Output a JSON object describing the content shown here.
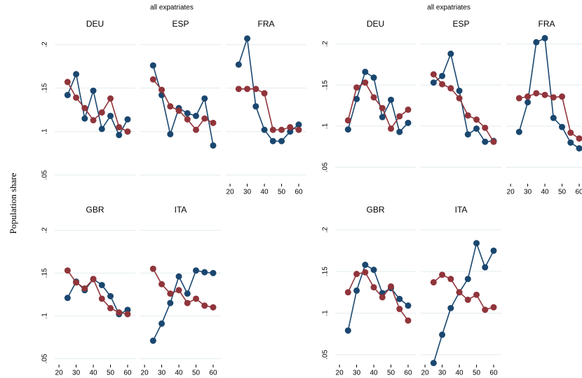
{
  "ylabel": "Population share",
  "groups": [
    {
      "title": "all expatriates"
    },
    {
      "title": "all expatriates"
    }
  ],
  "chart_data": [
    {
      "type": "line",
      "title": "DEU",
      "x": [
        25,
        30,
        35,
        40,
        45,
        50,
        55,
        60
      ],
      "xlim": [
        17.5,
        64.5
      ],
      "ylim": [
        0.04,
        0.215
      ],
      "yticks": [
        {
          "value": 0.05,
          "label": ".05"
        },
        {
          "value": 0.1,
          "label": ".1"
        },
        {
          "value": 0.15,
          "label": ".15"
        },
        {
          "value": 0.2,
          "label": ".2"
        }
      ],
      "series": [
        {
          "color": "#1a476f",
          "values": [
            0.142,
            0.166,
            0.115,
            0.147,
            0.103,
            0.118,
            0.096,
            0.114
          ]
        },
        {
          "color": "#90353b",
          "values": [
            0.157,
            0.139,
            0.127,
            0.113,
            0.122,
            0.138,
            0.105,
            0.1
          ]
        }
      ]
    },
    {
      "type": "line",
      "title": "ESP",
      "x": [
        25,
        30,
        35,
        40,
        45,
        50,
        55,
        60
      ],
      "xlim": [
        17.5,
        64.5
      ],
      "ylim": [
        0.04,
        0.215
      ],
      "yticks": [
        {
          "value": 0.05,
          "label": ".05"
        },
        {
          "value": 0.1,
          "label": ".1"
        },
        {
          "value": 0.15,
          "label": ".15"
        },
        {
          "value": 0.2,
          "label": ".2"
        }
      ],
      "series": [
        {
          "color": "#1a476f",
          "values": [
            0.176,
            0.142,
            0.097,
            0.127,
            0.121,
            0.118,
            0.138,
            0.084
          ]
        },
        {
          "color": "#90353b",
          "values": [
            0.16,
            0.148,
            0.129,
            0.124,
            0.114,
            0.102,
            0.115,
            0.11
          ]
        }
      ]
    },
    {
      "type": "line",
      "title": "FRA",
      "x": [
        25,
        30,
        35,
        40,
        45,
        50,
        55,
        60
      ],
      "xlim": [
        17.5,
        64.5
      ],
      "ylim": [
        0.04,
        0.215
      ],
      "yticks": [
        {
          "value": 0.05,
          "label": ".05"
        },
        {
          "value": 0.1,
          "label": ".1"
        },
        {
          "value": 0.15,
          "label": ".15"
        },
        {
          "value": 0.2,
          "label": ".2"
        }
      ],
      "xticks": [
        20,
        30,
        40,
        50,
        60
      ],
      "series": [
        {
          "color": "#1a476f",
          "values": [
            0.177,
            0.207,
            0.129,
            0.102,
            0.089,
            0.089,
            0.1,
            0.108
          ]
        },
        {
          "color": "#90353b",
          "values": [
            0.149,
            0.149,
            0.149,
            0.144,
            0.102,
            0.102,
            0.105,
            0.102
          ]
        }
      ]
    },
    {
      "type": "line",
      "title": "GBR",
      "x": [
        25,
        30,
        35,
        40,
        45,
        50,
        55,
        60
      ],
      "xlim": [
        17.5,
        64.5
      ],
      "ylim": [
        0.043,
        0.215
      ],
      "yticks": [
        {
          "value": 0.05,
          "label": ".05"
        },
        {
          "value": 0.1,
          "label": ".1"
        },
        {
          "value": 0.15,
          "label": ".15"
        },
        {
          "value": 0.2,
          "label": ".2"
        }
      ],
      "xticks": [
        20,
        30,
        40,
        50,
        60
      ],
      "series": [
        {
          "color": "#1a476f",
          "values": [
            0.121,
            0.14,
            0.13,
            0.143,
            0.136,
            0.123,
            0.102,
            0.107
          ]
        },
        {
          "color": "#90353b",
          "values": [
            0.153,
            0.139,
            0.132,
            0.143,
            0.12,
            0.109,
            0.104,
            0.102
          ]
        }
      ]
    },
    {
      "type": "line",
      "title": "ITA",
      "x": [
        25,
        30,
        35,
        40,
        45,
        50,
        55,
        60
      ],
      "xlim": [
        17.5,
        64.5
      ],
      "ylim": [
        0.043,
        0.215
      ],
      "yticks": [
        {
          "value": 0.05,
          "label": ".05"
        },
        {
          "value": 0.1,
          "label": ".1"
        },
        {
          "value": 0.15,
          "label": ".15"
        },
        {
          "value": 0.2,
          "label": ".2"
        }
      ],
      "xticks": [
        20,
        30,
        40,
        50,
        60
      ],
      "series": [
        {
          "color": "#1a476f",
          "values": [
            0.071,
            0.091,
            0.115,
            0.146,
            0.126,
            0.153,
            0.151,
            0.15
          ]
        },
        {
          "color": "#90353b",
          "values": [
            0.155,
            0.137,
            0.126,
            0.13,
            0.115,
            0.12,
            0.112,
            0.11
          ]
        }
      ]
    },
    {
      "type": "line",
      "title": "DEU",
      "x": [
        25,
        30,
        35,
        40,
        45,
        50,
        55,
        60
      ],
      "xlim": [
        17.5,
        64.5
      ],
      "ylim": [
        0.03,
        0.215
      ],
      "yticks": [
        {
          "value": 0.05,
          "label": ".05"
        },
        {
          "value": 0.1,
          "label": ".1"
        },
        {
          "value": 0.15,
          "label": ".15"
        },
        {
          "value": 0.2,
          "label": ".2"
        }
      ],
      "series": [
        {
          "color": "#1a476f",
          "values": [
            0.096,
            0.133,
            0.166,
            0.159,
            0.111,
            0.132,
            0.093,
            0.104
          ]
        },
        {
          "color": "#90353b",
          "values": [
            0.107,
            0.147,
            0.153,
            0.135,
            0.122,
            0.097,
            0.112,
            0.12
          ]
        }
      ]
    },
    {
      "type": "line",
      "title": "ESP",
      "x": [
        25,
        30,
        35,
        40,
        45,
        50,
        55,
        60
      ],
      "xlim": [
        17.5,
        64.5
      ],
      "ylim": [
        0.03,
        0.215
      ],
      "yticks": [
        {
          "value": 0.05,
          "label": ".05"
        },
        {
          "value": 0.1,
          "label": ".1"
        },
        {
          "value": 0.15,
          "label": ".15"
        },
        {
          "value": 0.2,
          "label": ".2"
        }
      ],
      "series": [
        {
          "color": "#1a476f",
          "values": [
            0.153,
            0.161,
            0.188,
            0.143,
            0.09,
            0.097,
            0.081,
            0.082
          ]
        },
        {
          "color": "#90353b",
          "values": [
            0.163,
            0.151,
            0.146,
            0.134,
            0.113,
            0.108,
            0.098,
            0.081
          ]
        }
      ]
    },
    {
      "type": "line",
      "title": "FRA",
      "x": [
        25,
        30,
        35,
        40,
        45,
        50,
        55,
        60
      ],
      "xlim": [
        17.5,
        64.5
      ],
      "ylim": [
        0.03,
        0.215
      ],
      "yticks": [
        {
          "value": 0.05,
          "label": ".05"
        },
        {
          "value": 0.1,
          "label": ".1"
        },
        {
          "value": 0.15,
          "label": ".15"
        },
        {
          "value": 0.2,
          "label": ".2"
        }
      ],
      "xticks": [
        20,
        30,
        40,
        50,
        60
      ],
      "series": [
        {
          "color": "#1a476f",
          "values": [
            0.093,
            0.129,
            0.202,
            0.207,
            0.11,
            0.099,
            0.08,
            0.073
          ]
        },
        {
          "color": "#90353b",
          "values": [
            0.134,
            0.136,
            0.14,
            0.138,
            0.135,
            0.136,
            0.092,
            0.085
          ]
        }
      ]
    },
    {
      "type": "line",
      "title": "GBR",
      "x": [
        25,
        30,
        35,
        40,
        45,
        50,
        55,
        60
      ],
      "xlim": [
        17.5,
        64.5
      ],
      "ylim": [
        0.038,
        0.215
      ],
      "yticks": [
        {
          "value": 0.05,
          "label": ".05"
        },
        {
          "value": 0.1,
          "label": ".1"
        },
        {
          "value": 0.15,
          "label": ".15"
        },
        {
          "value": 0.2,
          "label": ".2"
        }
      ],
      "xticks": [
        20,
        30,
        40,
        50,
        60
      ],
      "series": [
        {
          "color": "#1a476f",
          "values": [
            0.079,
            0.127,
            0.158,
            0.152,
            0.124,
            0.13,
            0.117,
            0.109
          ]
        },
        {
          "color": "#90353b",
          "values": [
            0.125,
            0.147,
            0.149,
            0.131,
            0.119,
            0.132,
            0.105,
            0.091
          ]
        }
      ]
    },
    {
      "type": "line",
      "title": "ITA",
      "x": [
        25,
        30,
        35,
        40,
        45,
        50,
        55,
        60
      ],
      "xlim": [
        17.5,
        64.5
      ],
      "ylim": [
        0.038,
        0.215
      ],
      "yticks": [
        {
          "value": 0.05,
          "label": ".05"
        },
        {
          "value": 0.1,
          "label": ".1"
        },
        {
          "value": 0.15,
          "label": ".15"
        },
        {
          "value": 0.2,
          "label": ".2"
        }
      ],
      "xticks": [
        20,
        30,
        40,
        50,
        60
      ],
      "series": [
        {
          "color": "#1a476f",
          "values": [
            0.04,
            0.074,
            0.106,
            0.125,
            0.141,
            0.184,
            0.155,
            0.175
          ]
        },
        {
          "color": "#90353b",
          "values": [
            0.137,
            0.146,
            0.141,
            0.125,
            0.116,
            0.122,
            0.104,
            0.107
          ]
        }
      ]
    }
  ]
}
